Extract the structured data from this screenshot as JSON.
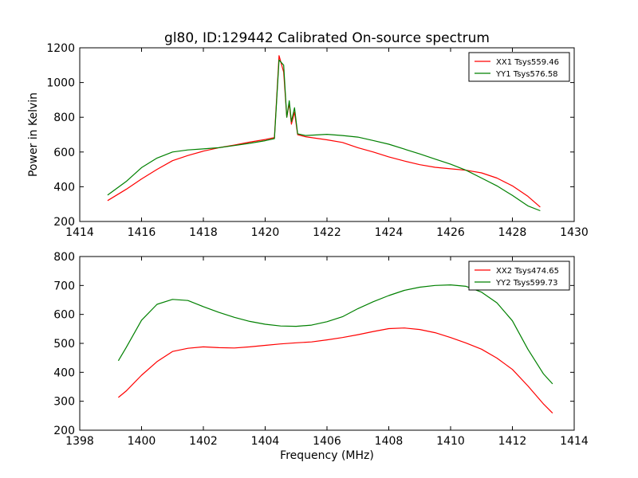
{
  "figure": {
    "title": "gl80, ID:129442 Calibrated On-source spectrum"
  },
  "chart_data": [
    {
      "type": "line",
      "title": "gl80, ID:129442 Calibrated On-source spectrum",
      "xlabel": "",
      "ylabel": "Power in Kelvin",
      "xlim": [
        1414,
        1430
      ],
      "ylim": [
        200,
        1200
      ],
      "xticks": [
        1414,
        1416,
        1418,
        1420,
        1422,
        1424,
        1426,
        1428,
        1430
      ],
      "yticks": [
        200,
        400,
        600,
        800,
        1000,
        1200
      ],
      "grid": false,
      "legend_position": "top-right",
      "series": [
        {
          "name": "XX1 Tsys559.46",
          "color": "#ff0000",
          "points": [
            [
              1414.9,
              320
            ],
            [
              1415.5,
              385
            ],
            [
              1416,
              445
            ],
            [
              1416.5,
              500
            ],
            [
              1417,
              550
            ],
            [
              1417.5,
              580
            ],
            [
              1418,
              605
            ],
            [
              1418.5,
              625
            ],
            [
              1419,
              640
            ],
            [
              1419.5,
              657
            ],
            [
              1420,
              672
            ],
            [
              1420.3,
              683
            ],
            [
              1420.45,
              1155
            ],
            [
              1420.6,
              1060
            ],
            [
              1420.7,
              800
            ],
            [
              1420.78,
              880
            ],
            [
              1420.85,
              760
            ],
            [
              1420.95,
              830
            ],
            [
              1421.05,
              700
            ],
            [
              1421.3,
              688
            ],
            [
              1422,
              670
            ],
            [
              1422.5,
              655
            ],
            [
              1423,
              625
            ],
            [
              1423.5,
              600
            ],
            [
              1424,
              572
            ],
            [
              1424.5,
              548
            ],
            [
              1425,
              527
            ],
            [
              1425.5,
              512
            ],
            [
              1426,
              503
            ],
            [
              1426.5,
              495
            ],
            [
              1427,
              480
            ],
            [
              1427.5,
              450
            ],
            [
              1428,
              405
            ],
            [
              1428.5,
              345
            ],
            [
              1428.9,
              283
            ]
          ]
        },
        {
          "name": "YY1 Tsys576.58",
          "color": "#008000",
          "points": [
            [
              1414.9,
              352
            ],
            [
              1415.5,
              430
            ],
            [
              1416,
              510
            ],
            [
              1416.5,
              565
            ],
            [
              1417,
              600
            ],
            [
              1417.5,
              612
            ],
            [
              1418,
              618
            ],
            [
              1418.5,
              625
            ],
            [
              1419,
              637
            ],
            [
              1419.5,
              650
            ],
            [
              1420,
              665
            ],
            [
              1420.3,
              677
            ],
            [
              1420.45,
              1130
            ],
            [
              1420.6,
              1100
            ],
            [
              1420.7,
              800
            ],
            [
              1420.78,
              895
            ],
            [
              1420.85,
              775
            ],
            [
              1420.95,
              855
            ],
            [
              1421.05,
              705
            ],
            [
              1421.3,
              695
            ],
            [
              1422,
              702
            ],
            [
              1422.5,
              695
            ],
            [
              1423,
              686
            ],
            [
              1423.5,
              666
            ],
            [
              1424,
              645
            ],
            [
              1424.5,
              617
            ],
            [
              1425,
              589
            ],
            [
              1425.5,
              559
            ],
            [
              1426,
              530
            ],
            [
              1426.5,
              495
            ],
            [
              1427,
              450
            ],
            [
              1427.5,
              405
            ],
            [
              1428,
              350
            ],
            [
              1428.5,
              290
            ],
            [
              1428.9,
              262
            ]
          ]
        }
      ]
    },
    {
      "type": "line",
      "title": "",
      "xlabel": "Frequency (MHz)",
      "ylabel": "",
      "xlim": [
        1398,
        1414
      ],
      "ylim": [
        200,
        800
      ],
      "xticks": [
        1398,
        1400,
        1402,
        1404,
        1406,
        1408,
        1410,
        1412,
        1414
      ],
      "yticks": [
        200,
        300,
        400,
        500,
        600,
        700,
        800
      ],
      "grid": false,
      "legend_position": "top-right",
      "series": [
        {
          "name": "XX2 Tsys474.65",
          "color": "#ff0000",
          "points": [
            [
              1399.25,
              313
            ],
            [
              1399.5,
              335
            ],
            [
              1400,
              390
            ],
            [
              1400.5,
              437
            ],
            [
              1401,
              472
            ],
            [
              1401.5,
              483
            ],
            [
              1402,
              488
            ],
            [
              1402.5,
              485
            ],
            [
              1403,
              484
            ],
            [
              1403.5,
              488
            ],
            [
              1404,
              493
            ],
            [
              1404.5,
              498
            ],
            [
              1405,
              502
            ],
            [
              1405.5,
              505
            ],
            [
              1406,
              512
            ],
            [
              1406.5,
              520
            ],
            [
              1407,
              530
            ],
            [
              1407.5,
              541
            ],
            [
              1408,
              551
            ],
            [
              1408.5,
              553
            ],
            [
              1409,
              548
            ],
            [
              1409.5,
              537
            ],
            [
              1410,
              520
            ],
            [
              1410.5,
              501
            ],
            [
              1411,
              480
            ],
            [
              1411.5,
              449
            ],
            [
              1412,
              410
            ],
            [
              1412.5,
              353
            ],
            [
              1413,
              291
            ],
            [
              1413.3,
              259
            ]
          ]
        },
        {
          "name": "YY2 Tsys599.73",
          "color": "#008000",
          "points": [
            [
              1399.25,
              440
            ],
            [
              1399.5,
              485
            ],
            [
              1400,
              580
            ],
            [
              1400.5,
              635
            ],
            [
              1401,
              652
            ],
            [
              1401.5,
              648
            ],
            [
              1402,
              627
            ],
            [
              1402.5,
              607
            ],
            [
              1403,
              590
            ],
            [
              1403.5,
              576
            ],
            [
              1404,
              566
            ],
            [
              1404.5,
              560
            ],
            [
              1405,
              559
            ],
            [
              1405.5,
              563
            ],
            [
              1406,
              575
            ],
            [
              1406.5,
              592
            ],
            [
              1407,
              620
            ],
            [
              1407.5,
              644
            ],
            [
              1408,
              665
            ],
            [
              1408.5,
              683
            ],
            [
              1409,
              694
            ],
            [
              1409.5,
              700
            ],
            [
              1410,
              702
            ],
            [
              1410.5,
              697
            ],
            [
              1411,
              677
            ],
            [
              1411.5,
              640
            ],
            [
              1412,
              578
            ],
            [
              1412.5,
              480
            ],
            [
              1413,
              395
            ],
            [
              1413.3,
              360
            ]
          ]
        }
      ]
    }
  ]
}
